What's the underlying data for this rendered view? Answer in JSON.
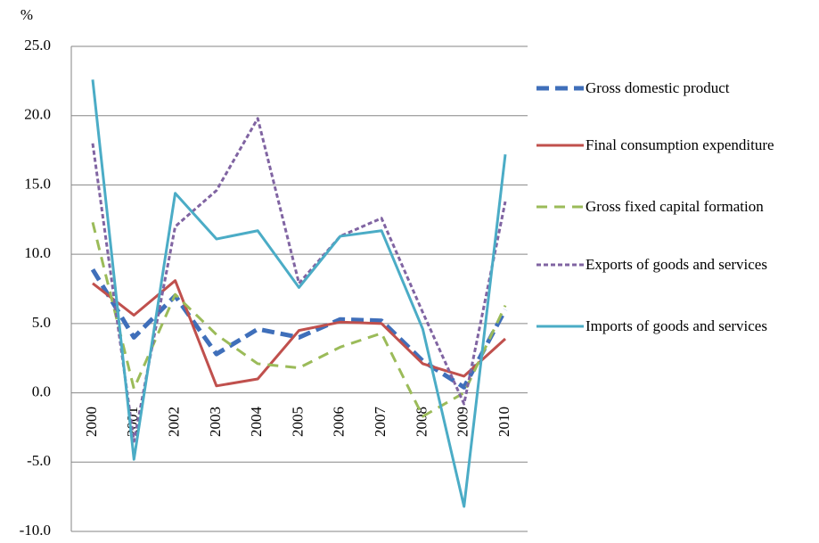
{
  "chart_data": {
    "type": "line",
    "y_axis_label": "%",
    "categories": [
      "2000",
      "2001",
      "2002",
      "2003",
      "2004",
      "2005",
      "2006",
      "2007",
      "2008",
      "2009",
      "2010"
    ],
    "series": [
      {
        "name": "Gross domestic product",
        "color": "#3f6fba",
        "dash": "long-dash",
        "values": [
          8.9,
          4.0,
          7.0,
          2.8,
          4.6,
          4.0,
          5.3,
          5.2,
          2.3,
          0.4,
          6.0
        ]
      },
      {
        "name": "Final consumption expenditure",
        "color": "#c0504d",
        "dash": "solid",
        "values": [
          7.9,
          5.6,
          8.1,
          0.5,
          1.0,
          4.5,
          5.1,
          5.0,
          2.1,
          1.2,
          3.9
        ]
      },
      {
        "name": "Gross fixed capital formation",
        "color": "#9bbb59",
        "dash": "dash",
        "values": [
          12.3,
          0.3,
          7.1,
          4.2,
          2.1,
          1.8,
          3.3,
          4.3,
          -1.7,
          0.0,
          6.3
        ]
      },
      {
        "name": "Exports of goods and services",
        "color": "#8064a2",
        "dash": "dot",
        "values": [
          18.0,
          -3.5,
          12.0,
          14.6,
          19.8,
          7.9,
          11.3,
          12.6,
          5.8,
          -0.8,
          13.8
        ]
      },
      {
        "name": "Imports of goods and services",
        "color": "#4bacc6",
        "dash": "solid",
        "values": [
          22.6,
          -4.8,
          14.4,
          11.1,
          11.7,
          7.6,
          11.3,
          11.7,
          4.6,
          -8.2,
          17.2
        ]
      }
    ],
    "ylim": [
      -10,
      25
    ],
    "yticks": [
      {
        "value": -10,
        "label": "-10.0"
      },
      {
        "value": -5,
        "label": "-5.0"
      },
      {
        "value": 0,
        "label": "0.0"
      },
      {
        "value": 5,
        "label": "5.0"
      },
      {
        "value": 10,
        "label": "10.0"
      },
      {
        "value": 15,
        "label": "15.0"
      },
      {
        "value": 20,
        "label": "20.0"
      },
      {
        "value": 25,
        "label": "25.0"
      }
    ],
    "grid": true
  }
}
